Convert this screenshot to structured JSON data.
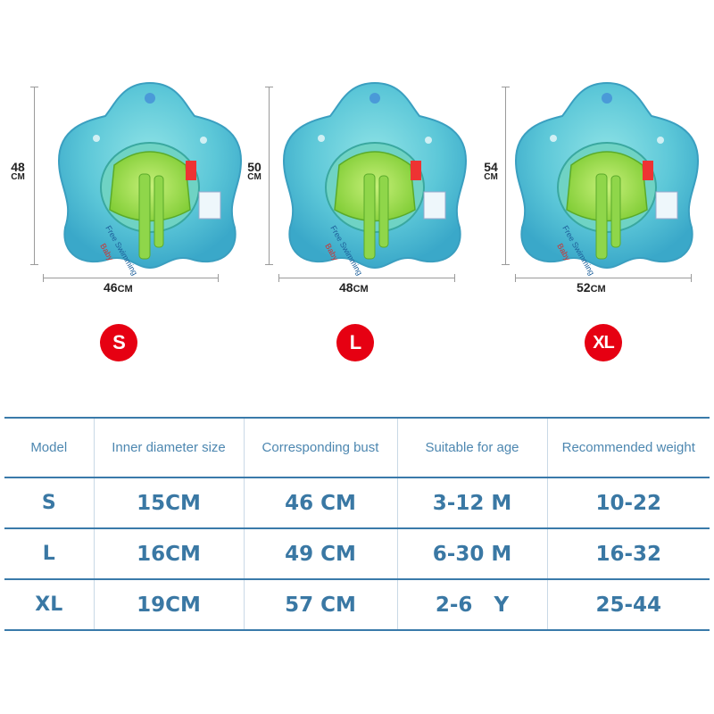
{
  "sizes": [
    {
      "height_num": "48",
      "height_unit": "CM",
      "width_num": "46",
      "width_unit": "CM",
      "badge": "S"
    },
    {
      "height_num": "50",
      "height_unit": "CM",
      "width_num": "48",
      "width_unit": "CM",
      "badge": "L"
    },
    {
      "height_num": "54",
      "height_unit": "CM",
      "width_num": "52",
      "width_unit": "CM",
      "badge": "XL"
    }
  ],
  "float_print": {
    "line1": "Free Swimming",
    "line2": "Baby"
  },
  "table": {
    "headers": [
      "Model",
      "Inner diameter size",
      "Corresponding bust",
      "Suitable for age",
      "Recommended weight"
    ],
    "rows": [
      [
        "S",
        "15CM",
        "46 CM",
        "3-12 M",
        "10-22"
      ],
      [
        "L",
        "16CM",
        "49 CM",
        "6-30 M",
        "16-32"
      ],
      [
        "XL",
        "19CM",
        "57 CM",
        "2-6   Y",
        "25-44"
      ]
    ]
  },
  "colors": {
    "badge": "#e60012",
    "table_border": "#3a7aaa",
    "table_text": "#3c7ca6",
    "float_body": "#5cc7d8",
    "seat": "#9be04a"
  }
}
